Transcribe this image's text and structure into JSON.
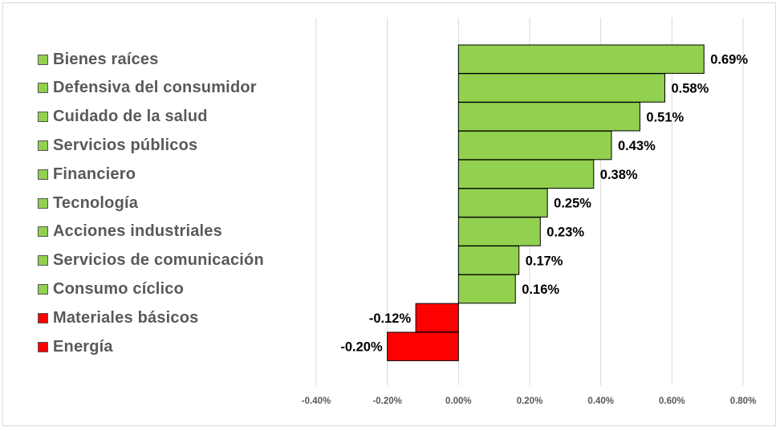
{
  "chart_data": {
    "type": "bar",
    "orientation": "horizontal",
    "categories": [
      "Bienes raíces",
      "Defensiva del consumidor",
      "Cuidado de la salud",
      "Servicios públicos",
      "Financiero",
      "Tecnología",
      "Acciones industriales",
      "Servicios de comunicación",
      "Consumo cíclico",
      "Materiales básicos",
      "Energía"
    ],
    "values": [
      0.69,
      0.58,
      0.51,
      0.43,
      0.38,
      0.25,
      0.23,
      0.17,
      0.16,
      -0.12,
      -0.2
    ],
    "data_labels": [
      "0.69%",
      "0.58%",
      "0.51%",
      "0.43%",
      "0.38%",
      "0.25%",
      "0.23%",
      "0.17%",
      "0.16%",
      "-0.12%",
      "-0.20%"
    ],
    "xlim": [
      -0.4,
      0.8
    ],
    "xticks": [
      -0.4,
      -0.2,
      0.0,
      0.2,
      0.4,
      0.6,
      0.8
    ],
    "xtick_labels": [
      "-0.40%",
      "-0.20%",
      "0.00%",
      "0.20%",
      "0.40%",
      "0.60%",
      "0.80%"
    ],
    "grid": true,
    "legend_position": "left",
    "title": "",
    "xlabel": "",
    "ylabel": "",
    "colors": {
      "positive": "#92d050",
      "negative": "#ff0000",
      "bar_border": "#000000",
      "grid": "#d9d9d9"
    }
  }
}
